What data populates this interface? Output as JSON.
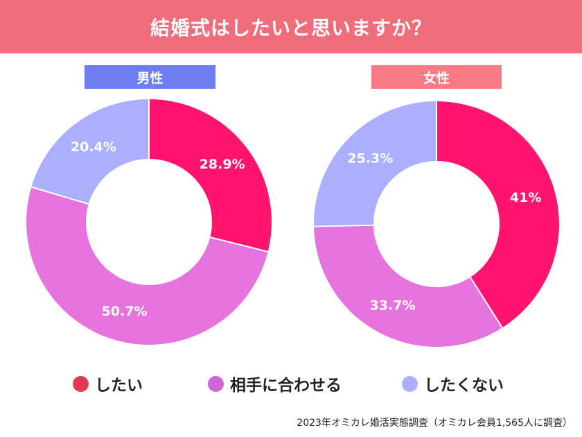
{
  "header": {
    "title": "結婚式はしたいと思いますか？"
  },
  "colors": {
    "header_bg": "#f06e7c",
    "male_label_bg": "#6d7ff0",
    "female_label_bg": "#f87a84",
    "shitai": "#ff1470",
    "awaseru": "#e673de",
    "shitakunai": "#aab0ff",
    "legend_shitai": "#e23a50",
    "legend_awaseru": "#cf66d8",
    "legend_shitakunai": "#aab0ff"
  },
  "chart_data": [
    {
      "type": "pie",
      "title": "男性",
      "categories": [
        "したい",
        "相手に合わせる",
        "したくない"
      ],
      "values": [
        28.9,
        50.7,
        20.4
      ],
      "labels": [
        "28.9%",
        "50.7%",
        "20.4%"
      ]
    },
    {
      "type": "pie",
      "title": "女性",
      "categories": [
        "したい",
        "相手に合わせる",
        "したくない"
      ],
      "values": [
        41,
        33.7,
        25.3
      ],
      "labels": [
        "41%",
        "33.7%",
        "25.3%"
      ]
    }
  ],
  "legend": [
    {
      "label": "したい",
      "color": "#e23a50"
    },
    {
      "label": "相手に合わせる",
      "color": "#cf66d8"
    },
    {
      "label": "したくない",
      "color": "#aab0ff"
    }
  ],
  "source": "2023年オミカレ婚活実態調査（オミカレ会員1,565人に調査）"
}
